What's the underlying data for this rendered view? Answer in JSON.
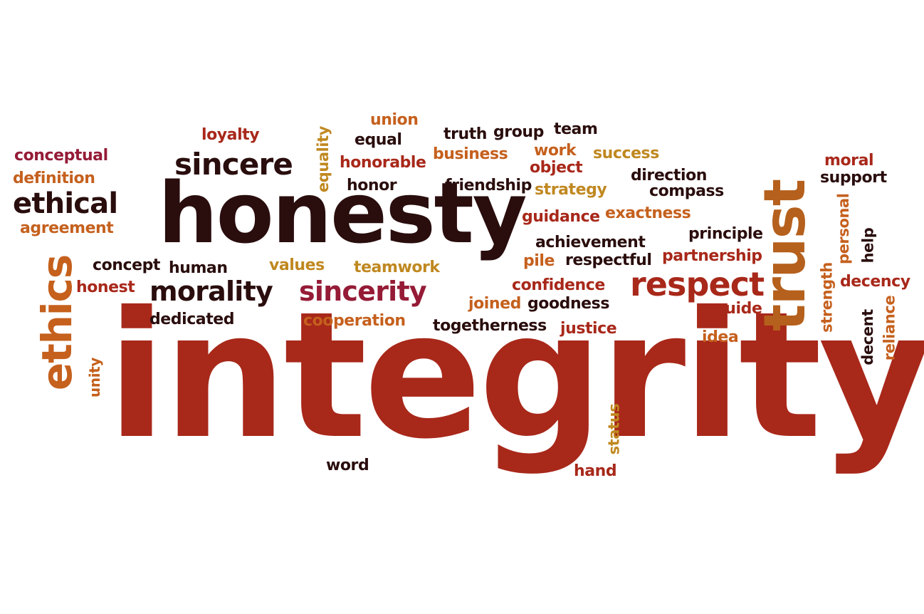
{
  "words": [
    {
      "text": "integrity",
      "color": "#a8281a"
    },
    {
      "text": "honesty",
      "color": "#2a0d0d"
    },
    {
      "text": "trust",
      "color": "#b5601c"
    },
    {
      "text": "ethics",
      "color": "#c5601d"
    },
    {
      "text": "respect",
      "color": "#a8281a"
    },
    {
      "text": "sincerity",
      "color": "#951b37"
    },
    {
      "text": "morality",
      "color": "#2a0d0d"
    },
    {
      "text": "sincere",
      "color": "#2a0d0d"
    },
    {
      "text": "ethical",
      "color": "#2a0d0d"
    },
    {
      "text": "conceptual",
      "color": "#951b37"
    },
    {
      "text": "definition",
      "color": "#c5601d"
    },
    {
      "text": "agreement",
      "color": "#c5601d"
    },
    {
      "text": "loyalty",
      "color": "#a8281a"
    },
    {
      "text": "equality",
      "color": "#c08820"
    },
    {
      "text": "union",
      "color": "#c5601d"
    },
    {
      "text": "equal",
      "color": "#2a0d0d"
    },
    {
      "text": "honorable",
      "color": "#a8281a"
    },
    {
      "text": "honor",
      "color": "#2a0d0d"
    },
    {
      "text": "truth",
      "color": "#2a0d0d"
    },
    {
      "text": "group",
      "color": "#2a0d0d"
    },
    {
      "text": "team",
      "color": "#2a0d0d"
    },
    {
      "text": "business",
      "color": "#c5601d"
    },
    {
      "text": "work",
      "color": "#c5601d"
    },
    {
      "text": "success",
      "color": "#c08820"
    },
    {
      "text": "object",
      "color": "#a8281a"
    },
    {
      "text": "moral",
      "color": "#a8281a"
    },
    {
      "text": "support",
      "color": "#2a0d0d"
    },
    {
      "text": "friendship",
      "color": "#2a0d0d"
    },
    {
      "text": "strategy",
      "color": "#c08820"
    },
    {
      "text": "direction",
      "color": "#2a0d0d"
    },
    {
      "text": "compass",
      "color": "#2a0d0d"
    },
    {
      "text": "guidance",
      "color": "#a8281a"
    },
    {
      "text": "exactness",
      "color": "#c5601d"
    },
    {
      "text": "personal",
      "color": "#c5601d"
    },
    {
      "text": "help",
      "color": "#2a0d0d"
    },
    {
      "text": "principle",
      "color": "#2a0d0d"
    },
    {
      "text": "achievement",
      "color": "#2a0d0d"
    },
    {
      "text": "pile",
      "color": "#c5601d"
    },
    {
      "text": "respectful",
      "color": "#2a0d0d"
    },
    {
      "text": "partnership",
      "color": "#a8281a"
    },
    {
      "text": "concept",
      "color": "#2a0d0d"
    },
    {
      "text": "human",
      "color": "#2a0d0d"
    },
    {
      "text": "values",
      "color": "#c08820"
    },
    {
      "text": "teamwork",
      "color": "#c08820"
    },
    {
      "text": "honest",
      "color": "#a8281a"
    },
    {
      "text": "confidence",
      "color": "#a8281a"
    },
    {
      "text": "strength",
      "color": "#c5601d"
    },
    {
      "text": "decency",
      "color": "#a8281a"
    },
    {
      "text": "joined",
      "color": "#c5601d"
    },
    {
      "text": "goodness",
      "color": "#2a0d0d"
    },
    {
      "text": "guide",
      "color": "#a8281a"
    },
    {
      "text": "reliance",
      "color": "#c5601d"
    },
    {
      "text": "decent",
      "color": "#2a0d0d"
    },
    {
      "text": "dedicated",
      "color": "#2a0d0d"
    },
    {
      "text": "cooperation",
      "color": "#c5601d"
    },
    {
      "text": "togetherness",
      "color": "#2a0d0d"
    },
    {
      "text": "justice",
      "color": "#a8281a"
    },
    {
      "text": "idea",
      "color": "#c5601d"
    },
    {
      "text": "unity",
      "color": "#c5601d"
    },
    {
      "text": "status",
      "color": "#c08820"
    },
    {
      "text": "word",
      "color": "#2a0d0d"
    },
    {
      "text": "hand",
      "color": "#a8281a"
    }
  ]
}
